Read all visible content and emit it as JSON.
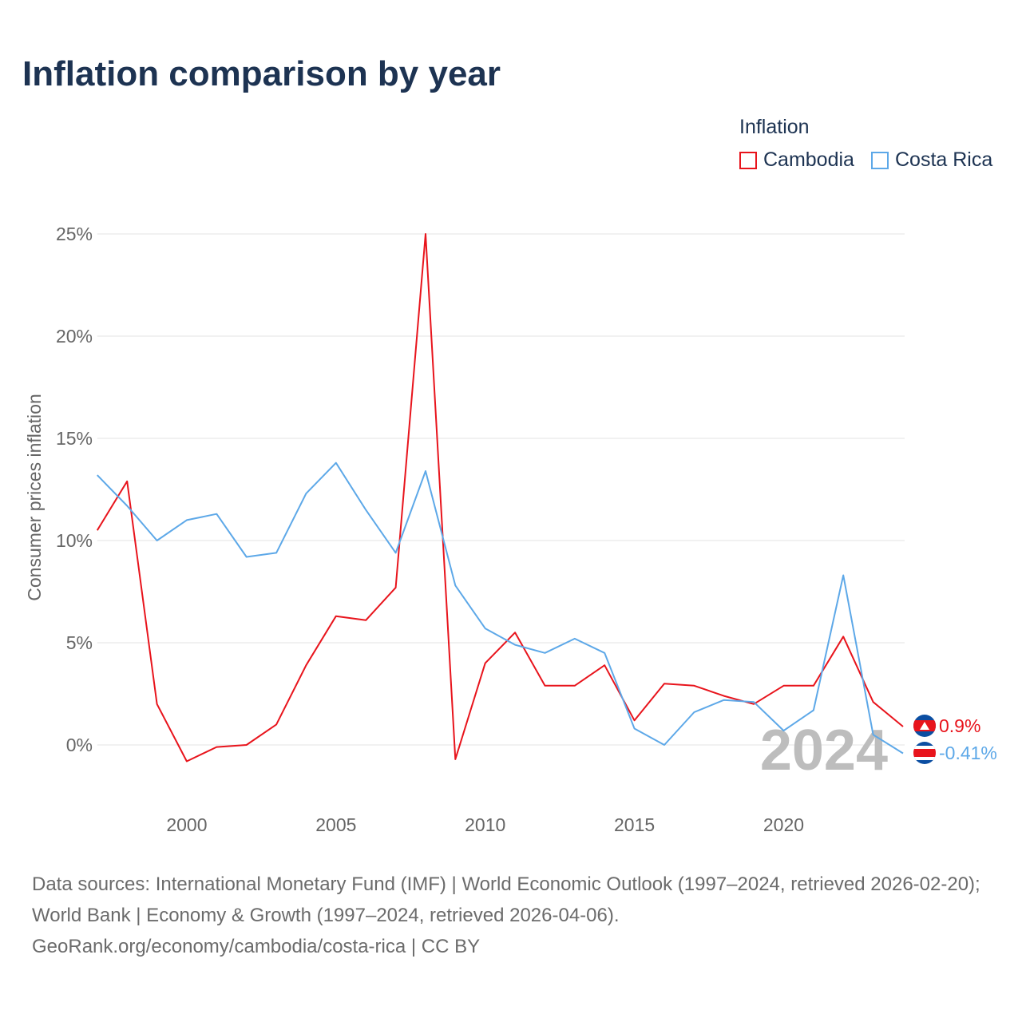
{
  "chart_data": {
    "type": "line",
    "title": "Inflation comparison by year",
    "legend_title": "Inflation",
    "legend_position": "top-right",
    "ylabel": "Consumer prices inflation",
    "xlabel": "",
    "ylim": [
      -2.5,
      26
    ],
    "xlim": [
      1997,
      2024
    ],
    "y_ticks": [
      0,
      5,
      10,
      15,
      20,
      25
    ],
    "y_tick_labels": [
      "0%",
      "5%",
      "10%",
      "15%",
      "20%",
      "25%"
    ],
    "x_ticks": [
      2000,
      2005,
      2010,
      2015,
      2020
    ],
    "x_tick_labels": [
      "2000",
      "2005",
      "2010",
      "2015",
      "2020"
    ],
    "grid": true,
    "year_watermark": "2024",
    "x": [
      1997,
      1998,
      1999,
      2000,
      2001,
      2002,
      2003,
      2004,
      2005,
      2006,
      2007,
      2008,
      2009,
      2010,
      2011,
      2012,
      2013,
      2014,
      2015,
      2016,
      2017,
      2018,
      2019,
      2020,
      2021,
      2022,
      2023,
      2024
    ],
    "series": [
      {
        "name": "Cambodia",
        "color": "#e8141c",
        "end_label": "0.9%",
        "flag": "cambodia-flag",
        "values": [
          10.5,
          12.9,
          2.0,
          -0.8,
          -0.1,
          0.0,
          1.0,
          3.9,
          6.3,
          6.1,
          7.7,
          25.0,
          -0.7,
          4.0,
          5.5,
          2.9,
          2.9,
          3.9,
          1.2,
          3.0,
          2.9,
          2.4,
          2.0,
          2.9,
          2.9,
          5.3,
          2.1,
          0.9
        ]
      },
      {
        "name": "Costa Rica",
        "color": "#5da8e8",
        "end_label": "-0.41%",
        "flag": "costa-rica-flag",
        "values": [
          13.2,
          11.7,
          10.0,
          11.0,
          11.3,
          9.2,
          9.4,
          12.3,
          13.8,
          11.5,
          9.4,
          13.4,
          7.8,
          5.7,
          4.9,
          4.5,
          5.2,
          4.5,
          0.8,
          0.0,
          1.6,
          2.2,
          2.1,
          0.7,
          1.7,
          8.3,
          0.5,
          -0.41
        ]
      }
    ]
  },
  "source": {
    "line1": "Data sources: International Monetary Fund (IMF) | World Economic Outlook (1997–2024, retrieved 2026-02-20); World Bank | Economy & Growth (1997–2024, retrieved 2026-04-06).",
    "line2": "GeoRank.org/economy/cambodia/costa-rica | CC BY"
  }
}
